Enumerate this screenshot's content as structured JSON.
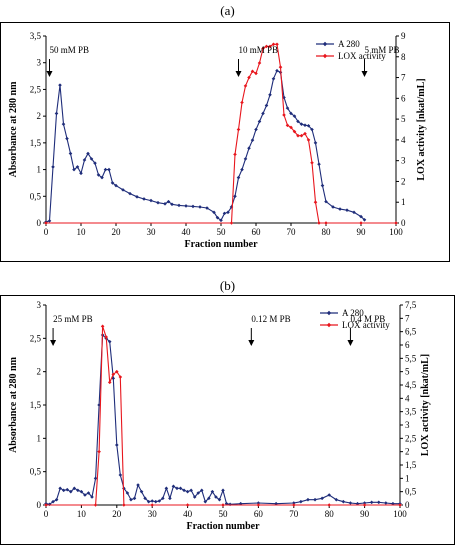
{
  "panels": [
    {
      "label": "(a)",
      "chart_data": {
        "type": "line",
        "xlabel": "Fraction number",
        "ylabel_left": "Absorbance at 280 nm",
        "ylabel_right": "LOX activity [nkat/mL]",
        "xlim": [
          0,
          100
        ],
        "xticks": [
          0,
          10,
          20,
          30,
          40,
          50,
          60,
          70,
          80,
          90,
          100
        ],
        "ylim_left": [
          0,
          3.5
        ],
        "yticks_left": [
          "0",
          "0,5",
          "1",
          "1,5",
          "2",
          "2,5",
          "3",
          "3,5"
        ],
        "ylim_right": [
          0,
          9
        ],
        "yticks_right": [
          "0",
          "1",
          "2",
          "3",
          "4",
          "5",
          "6",
          "7",
          "8",
          "9"
        ],
        "legend_position": "top-right",
        "annotations": [
          {
            "text": "50 mM PB",
            "x": 1
          },
          {
            "text": "10 mM PB",
            "x": 55
          },
          {
            "text": "5 mM PB",
            "x": 91
          }
        ],
        "series": [
          {
            "name": "A 280",
            "axis": "left",
            "color": "#1f2d7a",
            "marker": "diamond",
            "x": [
              0,
              1,
              2,
              3,
              4,
              5,
              6,
              7,
              8,
              9,
              10,
              11,
              12,
              13,
              14,
              15,
              16,
              17,
              18,
              19,
              20,
              22,
              24,
              26,
              28,
              30,
              32,
              34,
              35,
              36,
              38,
              40,
              42,
              44,
              46,
              48,
              49,
              50,
              51,
              52,
              53,
              54,
              55,
              56,
              57,
              58,
              59,
              60,
              61,
              62,
              63,
              64,
              65,
              66,
              67,
              68,
              69,
              70,
              71,
              72,
              73,
              74,
              75,
              76,
              77,
              78,
              79,
              80,
              82,
              84,
              86,
              88,
              90,
              91
            ],
            "y": [
              0.02,
              0.04,
              1.05,
              2.05,
              2.58,
              1.85,
              1.58,
              1.3,
              1.0,
              1.05,
              0.93,
              1.18,
              1.3,
              1.2,
              1.12,
              0.9,
              0.85,
              1.0,
              1.0,
              0.75,
              0.7,
              0.62,
              0.55,
              0.49,
              0.45,
              0.42,
              0.38,
              0.36,
              0.4,
              0.35,
              0.33,
              0.32,
              0.31,
              0.3,
              0.28,
              0.2,
              0.1,
              0.05,
              0.18,
              0.2,
              0.3,
              0.5,
              0.85,
              1.0,
              1.2,
              1.4,
              1.55,
              1.75,
              1.9,
              2.05,
              2.2,
              2.4,
              2.7,
              2.85,
              2.82,
              2.35,
              2.15,
              2.05,
              2.0,
              1.9,
              1.85,
              1.83,
              1.82,
              1.75,
              1.5,
              1.1,
              0.7,
              0.4,
              0.3,
              0.26,
              0.24,
              0.2,
              0.12,
              0.06
            ]
          },
          {
            "name": "LOX activity",
            "axis": "right",
            "color": "#e8161d",
            "marker": "diamond",
            "x": [
              0,
              53,
              54,
              55,
              56,
              57,
              58,
              59,
              60,
              61,
              62,
              63,
              64,
              65,
              66,
              67,
              68,
              69,
              70,
              71,
              72,
              73,
              74,
              75,
              76,
              77,
              78,
              80,
              90,
              100
            ],
            "y": [
              0,
              0,
              3.3,
              4.5,
              5.8,
              6.6,
              7.0,
              7.3,
              7.2,
              7.7,
              8.4,
              8.5,
              8.5,
              8.6,
              8.6,
              7.5,
              5.2,
              4.7,
              4.6,
              4.4,
              4.2,
              4.2,
              4.3,
              4.0,
              2.9,
              1.0,
              0,
              0,
              0,
              0
            ]
          }
        ]
      }
    },
    {
      "label": "(b)",
      "chart_data": {
        "type": "line",
        "xlabel": "Fraction number",
        "ylabel_left": "Absorbance at 280 nm",
        "ylabel_right": "LOX activity [nkat/mL]",
        "xlim": [
          0,
          100
        ],
        "xticks": [
          0,
          10,
          20,
          30,
          40,
          50,
          60,
          70,
          80,
          90,
          100
        ],
        "ylim_left": [
          0,
          3
        ],
        "yticks_left": [
          "0",
          "0,5",
          "1",
          "1,5",
          "2",
          "2,5",
          "3"
        ],
        "ylim_right": [
          0,
          7.5
        ],
        "yticks_right": [
          "0",
          "0,5",
          "1",
          "1,5",
          "2",
          "2,5",
          "3",
          "3,5",
          "4",
          "4,5",
          "5",
          "5,5",
          "6",
          "6,5",
          "7",
          "7,5"
        ],
        "legend_position": "top-right",
        "annotations": [
          {
            "text": "25 mM PB",
            "x": 2
          },
          {
            "text": "0.12 M PB",
            "x": 58
          },
          {
            "text": "0.4 M PB",
            "x": 86
          }
        ],
        "series": [
          {
            "name": "A 280",
            "axis": "left",
            "color": "#1f2d7a",
            "marker": "diamond",
            "x": [
              0,
              1,
              2,
              3,
              4,
              5,
              6,
              7,
              8,
              9,
              10,
              11,
              12,
              13,
              14,
              15,
              16,
              17,
              18,
              19,
              20,
              21,
              22,
              23,
              24,
              25,
              26,
              27,
              28,
              29,
              30,
              31,
              32,
              33,
              34,
              35,
              36,
              37,
              38,
              39,
              40,
              41,
              42,
              43,
              44,
              45,
              46,
              47,
              48,
              49,
              50,
              51,
              52,
              55,
              60,
              65,
              70,
              72,
              74,
              76,
              78,
              80,
              82,
              84,
              86,
              88,
              90,
              92,
              94,
              96,
              98,
              100
            ],
            "y": [
              0.02,
              0.01,
              0.05,
              0.08,
              0.25,
              0.22,
              0.23,
              0.2,
              0.25,
              0.22,
              0.2,
              0.15,
              0.18,
              0.12,
              0.4,
              1.5,
              2.55,
              2.5,
              2.45,
              1.9,
              0.9,
              0.45,
              0.25,
              0.18,
              0.08,
              0.1,
              0.3,
              0.2,
              0.1,
              0.05,
              0.06,
              0.05,
              0.06,
              0.1,
              0.25,
              0.1,
              0.28,
              0.25,
              0.25,
              0.22,
              0.2,
              0.22,
              0.12,
              0.18,
              0.22,
              0.05,
              0.1,
              0.2,
              0.12,
              0.08,
              0.22,
              0.02,
              0.01,
              0.02,
              0.03,
              0.02,
              0.03,
              0.05,
              0.08,
              0.08,
              0.1,
              0.15,
              0.08,
              0.05,
              0.03,
              0.02,
              0.03,
              0.04,
              0.04,
              0.03,
              0.02,
              0.02
            ]
          },
          {
            "name": "LOX activity",
            "axis": "right",
            "color": "#e8161d",
            "marker": "diamond",
            "x": [
              0,
              14,
              15,
              16,
              17,
              18,
              19,
              20,
              21,
              22,
              30,
              40,
              50,
              60,
              70,
              80,
              90,
              100
            ],
            "y": [
              0,
              0,
              2.0,
              6.7,
              6.3,
              4.6,
              4.9,
              5.0,
              4.8,
              0,
              0,
              0,
              0,
              0,
              0,
              0,
              0,
              0
            ]
          }
        ]
      }
    }
  ]
}
